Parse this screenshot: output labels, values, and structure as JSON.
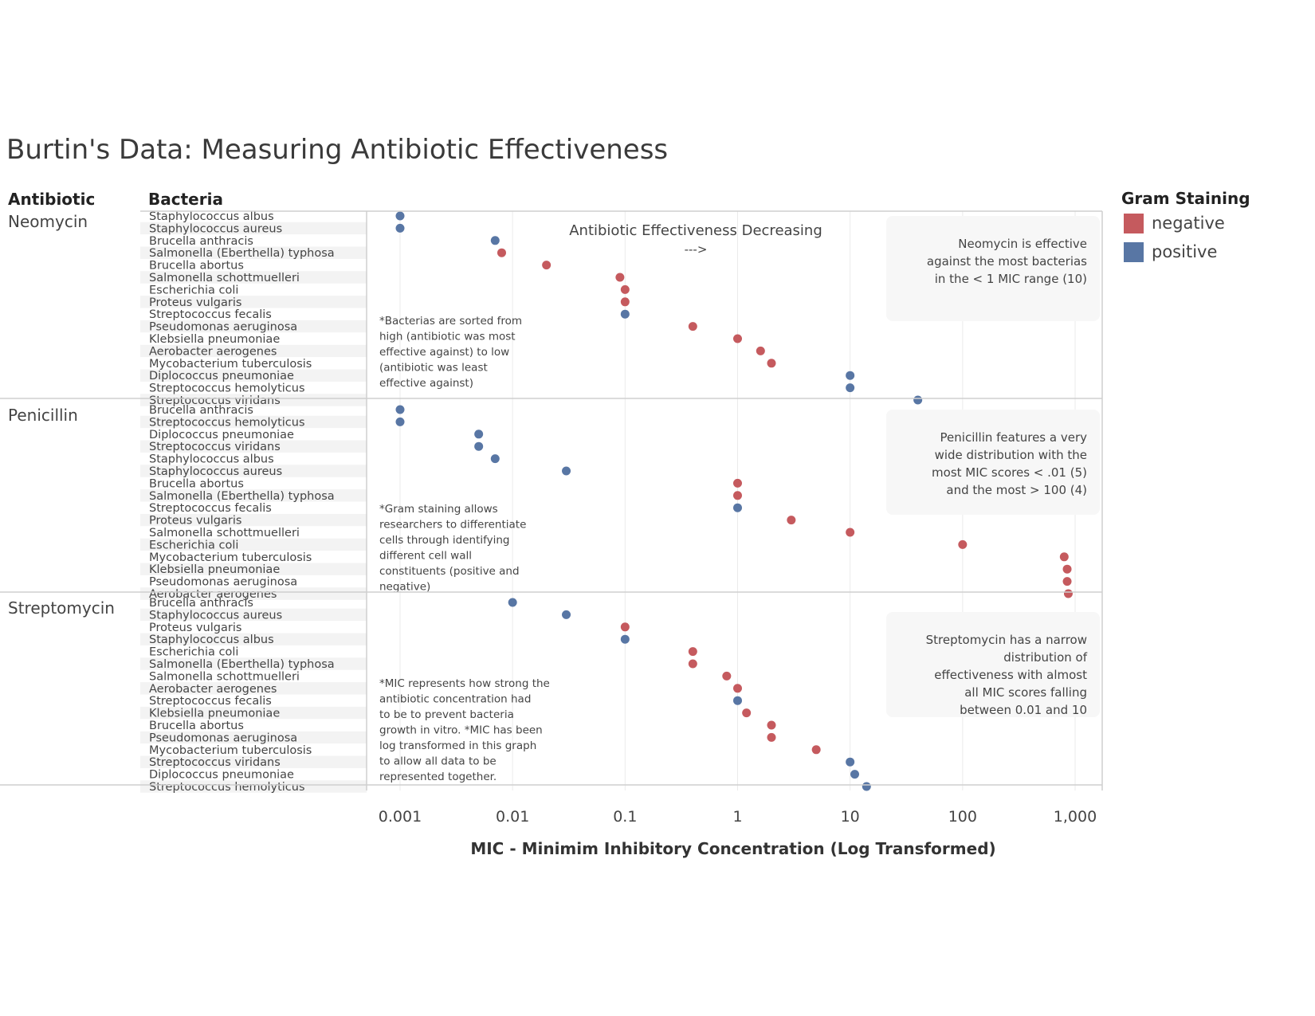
{
  "title": "Burtin's Data: Measuring Antibiotic Effectiveness",
  "headers": {
    "antibiotic": "Antibiotic",
    "bacteria": "Bacteria"
  },
  "legend": {
    "title": "Gram Staining",
    "items": [
      {
        "label": "negative",
        "color": "#c55a5e"
      },
      {
        "label": "positive",
        "color": "#5876a4"
      }
    ]
  },
  "effectiveness_label": "Antibiotic Effectiveness Decreasing",
  "effectiveness_arrow": "--->",
  "chart_data": {
    "type": "scatter",
    "title": "Burtin's Data: Measuring Antibiotic Effectiveness",
    "xlabel": "MIC - Minimim Inhibitory Concentration (Log Transformed)",
    "x_scale": "log",
    "xlim": [
      0.0005,
      1500
    ],
    "x_ticks": [
      0.001,
      0.01,
      0.1,
      1,
      10,
      100,
      1000
    ],
    "x_tick_labels": [
      "0.001",
      "0.01",
      "0.1",
      "1",
      "10",
      "100",
      "1,000"
    ],
    "grid": "vertical",
    "legend_position": "top-right",
    "panels": [
      {
        "antibiotic": "Neomycin",
        "note": "Neomycin is effective against the most bacterias in the < 1 MIC range (10)",
        "side_note": "*Bacterias are sorted from high (antibiotic was most effective against) to low (antibiotic was least effective against)",
        "points": [
          {
            "bacteria": "Staphylococcus albus",
            "mic": 0.001,
            "gram": "positive"
          },
          {
            "bacteria": "Staphylococcus aureus",
            "mic": 0.001,
            "gram": "positive"
          },
          {
            "bacteria": "Brucella anthracis",
            "mic": 0.007,
            "gram": "positive"
          },
          {
            "bacteria": "Salmonella (Eberthella) typhosa",
            "mic": 0.008,
            "gram": "negative"
          },
          {
            "bacteria": "Brucella abortus",
            "mic": 0.02,
            "gram": "negative"
          },
          {
            "bacteria": "Salmonella schottmuelleri",
            "mic": 0.09,
            "gram": "negative"
          },
          {
            "bacteria": "Escherichia coli",
            "mic": 0.1,
            "gram": "negative"
          },
          {
            "bacteria": "Proteus vulgaris",
            "mic": 0.1,
            "gram": "negative"
          },
          {
            "bacteria": "Streptococcus fecalis",
            "mic": 0.1,
            "gram": "positive"
          },
          {
            "bacteria": "Pseudomonas aeruginosa",
            "mic": 0.4,
            "gram": "negative"
          },
          {
            "bacteria": "Klebsiella pneumoniae",
            "mic": 1,
            "gram": "negative"
          },
          {
            "bacteria": "Aerobacter aerogenes",
            "mic": 1.6,
            "gram": "negative"
          },
          {
            "bacteria": "Mycobacterium tuberculosis",
            "mic": 2,
            "gram": "negative"
          },
          {
            "bacteria": "Diplococcus pneumoniae",
            "mic": 10,
            "gram": "positive"
          },
          {
            "bacteria": "Streptococcus hemolyticus",
            "mic": 10,
            "gram": "positive"
          },
          {
            "bacteria": "Streptococcus viridans",
            "mic": 40,
            "gram": "positive"
          }
        ]
      },
      {
        "antibiotic": "Penicillin",
        "note": "Penicillin features a very wide distribution with the most MIC scores < .01 (5) and the most > 100 (4)",
        "side_note": "*Gram staining allows researchers to differentiate cells through identifying different cell wall constituents (positive and negative)",
        "points": [
          {
            "bacteria": "Brucella anthracis",
            "mic": 0.001,
            "gram": "positive"
          },
          {
            "bacteria": "Streptococcus hemolyticus",
            "mic": 0.001,
            "gram": "positive"
          },
          {
            "bacteria": "Diplococcus pneumoniae",
            "mic": 0.005,
            "gram": "positive"
          },
          {
            "bacteria": "Streptococcus viridans",
            "mic": 0.005,
            "gram": "positive"
          },
          {
            "bacteria": "Staphylococcus albus",
            "mic": 0.007,
            "gram": "positive"
          },
          {
            "bacteria": "Staphylococcus aureus",
            "mic": 0.03,
            "gram": "positive"
          },
          {
            "bacteria": "Brucella abortus",
            "mic": 1,
            "gram": "negative"
          },
          {
            "bacteria": "Salmonella (Eberthella) typhosa",
            "mic": 1,
            "gram": "negative"
          },
          {
            "bacteria": "Streptococcus fecalis",
            "mic": 1,
            "gram": "positive"
          },
          {
            "bacteria": "Proteus vulgaris",
            "mic": 3,
            "gram": "negative"
          },
          {
            "bacteria": "Salmonella schottmuelleri",
            "mic": 10,
            "gram": "negative"
          },
          {
            "bacteria": "Escherichia coli",
            "mic": 100,
            "gram": "negative"
          },
          {
            "bacteria": "Mycobacterium tuberculosis",
            "mic": 800,
            "gram": "negative"
          },
          {
            "bacteria": "Klebsiella pneumoniae",
            "mic": 850,
            "gram": "negative"
          },
          {
            "bacteria": "Pseudomonas aeruginosa",
            "mic": 850,
            "gram": "negative"
          },
          {
            "bacteria": "Aerobacter aerogenes",
            "mic": 870,
            "gram": "negative"
          }
        ]
      },
      {
        "antibiotic": "Streptomycin",
        "note": "Streptomycin has a narrow distribution of effectiveness with almost all MIC scores falling between 0.01 and 10",
        "side_note": "*MIC represents how strong the antibiotic concentration had to be to prevent bacteria growth in vitro. *MIC has been log transformed in this graph to allow all data to be represented together.",
        "points": [
          {
            "bacteria": "Brucella anthracis",
            "mic": 0.01,
            "gram": "positive"
          },
          {
            "bacteria": "Staphylococcus aureus",
            "mic": 0.03,
            "gram": "positive"
          },
          {
            "bacteria": "Proteus vulgaris",
            "mic": 0.1,
            "gram": "negative"
          },
          {
            "bacteria": "Staphylococcus albus",
            "mic": 0.1,
            "gram": "positive"
          },
          {
            "bacteria": "Escherichia coli",
            "mic": 0.4,
            "gram": "negative"
          },
          {
            "bacteria": "Salmonella (Eberthella) typhosa",
            "mic": 0.4,
            "gram": "negative"
          },
          {
            "bacteria": "Salmonella schottmuelleri",
            "mic": 0.8,
            "gram": "negative"
          },
          {
            "bacteria": "Aerobacter aerogenes",
            "mic": 1,
            "gram": "negative"
          },
          {
            "bacteria": "Streptococcus fecalis",
            "mic": 1,
            "gram": "positive"
          },
          {
            "bacteria": "Klebsiella pneumoniae",
            "mic": 1.2,
            "gram": "negative"
          },
          {
            "bacteria": "Brucella abortus",
            "mic": 2,
            "gram": "negative"
          },
          {
            "bacteria": "Pseudomonas aeruginosa",
            "mic": 2,
            "gram": "negative"
          },
          {
            "bacteria": "Mycobacterium tuberculosis",
            "mic": 5,
            "gram": "negative"
          },
          {
            "bacteria": "Streptococcus viridans",
            "mic": 10,
            "gram": "positive"
          },
          {
            "bacteria": "Diplococcus pneumoniae",
            "mic": 11,
            "gram": "positive"
          },
          {
            "bacteria": "Streptococcus hemolyticus",
            "mic": 14,
            "gram": "positive"
          }
        ]
      }
    ]
  }
}
